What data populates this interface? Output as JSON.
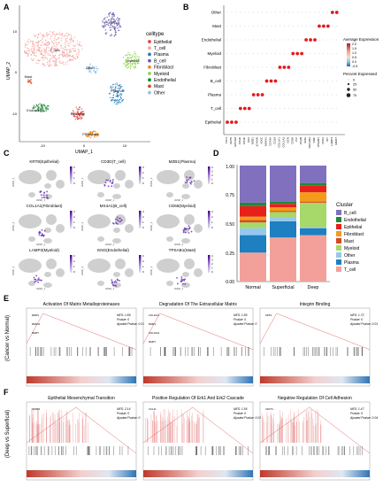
{
  "panels": {
    "A": {
      "letter": "A",
      "xlabel": "UMAP_1",
      "ylabel": "UMAP_2",
      "legend_title": "celltype",
      "xticks": [
        "-10",
        "0",
        "10"
      ],
      "yticks": [
        "10",
        "0",
        "-10"
      ],
      "clusters": [
        {
          "name": "Epithelial",
          "color": "#e8403a"
        },
        {
          "name": "T_cell",
          "color": "#f4a6a0"
        },
        {
          "name": "Plasma",
          "color": "#1e7fc1"
        },
        {
          "name": "B_cell",
          "color": "#6a5fb0"
        },
        {
          "name": "Fibroblast",
          "color": "#f08a1c"
        },
        {
          "name": "Myeloid",
          "color": "#8fd14f"
        },
        {
          "name": "Endothelial",
          "color": "#1f8a3a"
        },
        {
          "name": "Mast",
          "color": "#d9481f"
        },
        {
          "name": "Other",
          "color": "#8fc3e8"
        }
      ],
      "labels": [
        "T_cell",
        "B_cell",
        "Myeloid",
        "Other",
        "Mast",
        "Endothelial",
        "Plasma",
        "Epithelial",
        "Fibroblast"
      ]
    },
    "B": {
      "letter": "B",
      "rows": [
        "Other",
        "Mast",
        "Endothelial",
        "Myeloid",
        "Fibroblast",
        "B_cell",
        "Plasma",
        "T_cell",
        "Epithelial"
      ],
      "genes": [
        "TFF3",
        "KRT8",
        "EPCAM",
        "CD3D",
        "CD3E",
        "CD2",
        "MZB1",
        "JCHAIN",
        "IGKC",
        "MS4A1",
        "CD79A",
        "CD19",
        "COL1A1",
        "COL1A2",
        "DCN",
        "CD68",
        "LYZ",
        "C1QB",
        "ENG",
        "PECAM1",
        "VWF",
        "TPSAB1",
        "CPA3",
        "KIT",
        "LAMP3",
        "MKI67"
      ],
      "avg_title": "Average Expression",
      "avg_ticks": [
        "2.0",
        "1.5",
        "1.0",
        "0.5",
        "0.0",
        "-0.5"
      ],
      "pct_title": "Percent Expressed",
      "pct_ticks": [
        "0",
        "25",
        "50",
        "75"
      ]
    },
    "C": {
      "letter": "C",
      "maps": [
        {
          "title": "KRT8(Epithelial)",
          "scale": [
            "3",
            "2",
            "1",
            "0"
          ]
        },
        {
          "title": "CD3D(T_cell)",
          "scale": [
            "3",
            "2",
            "1",
            "0"
          ]
        },
        {
          "title": "MZB1(Plasma)",
          "scale": [
            "4",
            "3",
            "2",
            "1",
            "0"
          ]
        },
        {
          "title": "COL1A1(Fibroblast)",
          "scale": [
            "3",
            "2",
            "1",
            "0"
          ]
        },
        {
          "title": "MS4A1(B_cell)",
          "scale": [
            "3",
            "2",
            "1",
            "0"
          ]
        },
        {
          "title": "CD68(Myeloid)",
          "scale": [
            "3",
            "2",
            "1",
            "0"
          ]
        },
        {
          "title": "LAMP3(Myeloid)",
          "scale": [
            "3",
            "2",
            "1",
            "0"
          ]
        },
        {
          "title": "ENG(Endothelial)",
          "scale": [
            "3",
            "2",
            "1",
            "0"
          ]
        },
        {
          "title": "TPSAB1(Mast)",
          "scale": [
            "4",
            "3",
            "2",
            "1",
            "0"
          ]
        }
      ],
      "axis_x": "UMAP_1",
      "axis_y": "UMAP_2"
    },
    "D": {
      "letter": "D",
      "legend_title": "Cluster",
      "yticks": [
        "1.00",
        "0.75",
        "0.50",
        "0.25",
        "0.00"
      ]
    },
    "E": {
      "letter": "E",
      "side_label": "(Cancer vs Normal)",
      "plots": [
        {
          "title": "Activation Of Matrix Metalloproteinases",
          "nes": "NES: 1.89",
          "pvalue": "Pvalue: 0",
          "padj": "Ajusted Pvalue: 0.01",
          "genes": [
            "MMP1",
            "MMP11",
            "MMP7"
          ]
        },
        {
          "title": "Degradation Of The Extracellular Matrix",
          "nes": "NES: 1.86",
          "pvalue": "Pvalue: 0",
          "padj": "Ajusted Pvalue: 0",
          "genes": [
            "COL11A1",
            "MMP1",
            "COL10A1",
            "MMP7"
          ]
        },
        {
          "title": "Integrin Binding",
          "nes": "NES: 1.72",
          "pvalue": "Pvalue: 0",
          "padj": "Ajusted Pvalue: 0.01",
          "genes": [
            "SPP1"
          ]
        }
      ]
    },
    "F": {
      "letter": "F",
      "side_label": "(Deep vs Superfical)",
      "plots": [
        {
          "title": "Epithelial Mesenchymal Transition",
          "nes": "NES: 2.14",
          "pvalue": "Pvalue: 0",
          "padj": "Ajusted Pvalue: 0",
          "genes": [
            "SFRP4"
          ]
        },
        {
          "title": "Positive Regulation Of Erk1 And Erk2 Cascade",
          "nes": "NES: 1.56",
          "pvalue": "Pvalue: 0",
          "padj": "Ajusted Pvalue: 0.02",
          "genes": [
            "CCL21"
          ]
        },
        {
          "title": "Negative Regulation Of Cell Adhesion",
          "nes": "NES: 1.47",
          "pvalue": "Pvalue: 0",
          "padj": "Ajusted Pvalue: 0.04",
          "genes": [
            "CD274"
          ]
        }
      ]
    }
  },
  "chart_data": [
    {
      "type": "bar",
      "stacked": true,
      "categories": [
        "Normal",
        "Superficial",
        "Deep"
      ],
      "ylim": [
        0,
        1
      ],
      "legend": "right",
      "series": [
        {
          "name": "B_cell",
          "color": "#8170be",
          "values": [
            0.32,
            0.31,
            0.15
          ]
        },
        {
          "name": "Endothelial",
          "color": "#1f8a3a",
          "values": [
            0.03,
            0.02,
            0.02
          ]
        },
        {
          "name": "Epithelial",
          "color": "#e8201a",
          "values": [
            0.09,
            0.03,
            0.06
          ]
        },
        {
          "name": "Fibroblast",
          "color": "#f39c1a",
          "values": [
            0.03,
            0.03,
            0.08
          ]
        },
        {
          "name": "Mast",
          "color": "#d9481f",
          "values": [
            0.02,
            0.01,
            0.01
          ]
        },
        {
          "name": "Myeloid",
          "color": "#a6d86a",
          "values": [
            0.05,
            0.05,
            0.21
          ]
        },
        {
          "name": "Other",
          "color": "#95c8ec",
          "values": [
            0.06,
            0.03,
            0.01
          ]
        },
        {
          "name": "Plasma",
          "color": "#1e7fc1",
          "values": [
            0.15,
            0.14,
            0.06
          ]
        },
        {
          "name": "T_cell",
          "color": "#f4a09a",
          "values": [
            0.25,
            0.38,
            0.4
          ]
        }
      ]
    }
  ]
}
